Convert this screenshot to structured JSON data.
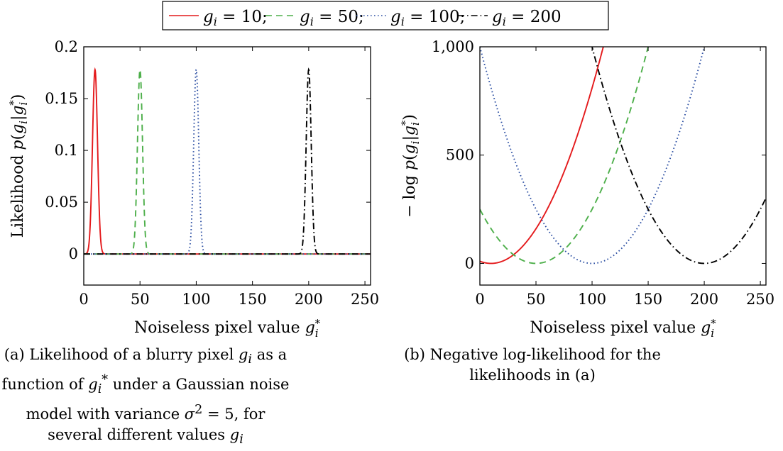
{
  "legend": {
    "entries": [
      {
        "label": "g",
        "sub": "i",
        "rest": " = 10;",
        "color": "#e41a1c",
        "dash": "solid"
      },
      {
        "label": "g",
        "sub": "i",
        "rest": " = 50;",
        "color": "#4daf4a",
        "dash": "dashed"
      },
      {
        "label": "g",
        "sub": "i",
        "rest": " = 100;",
        "color": "#2c4fa3",
        "dash": "dotted"
      },
      {
        "label": "g",
        "sub": "i",
        "rest": " = 200",
        "color": "#000000",
        "dash": "dashdot"
      }
    ]
  },
  "chart_data": [
    {
      "type": "line",
      "panel": "a",
      "ylabel": "Likelihood p(gᵢ|gᵢ*)",
      "xlabel": "Noiseless pixel value gᵢ*",
      "xlim": [
        0,
        255
      ],
      "ylim": [
        -0.03,
        0.2
      ],
      "xticks": [
        0,
        50,
        100,
        150,
        200,
        250
      ],
      "xtick_labels": [
        "0",
        "50",
        "100",
        "150",
        "200",
        "250"
      ],
      "yticks": [
        0,
        0.05,
        0.1,
        0.15,
        0.2
      ],
      "ytick_labels": [
        "0",
        "0.05",
        "0.1",
        "0.15",
        "0.2"
      ],
      "model": "gaussian",
      "variance": 5,
      "series": [
        {
          "name": "gᵢ = 10",
          "center": 10,
          "peak": 0.178
        },
        {
          "name": "gᵢ = 50",
          "center": 50,
          "peak": 0.178
        },
        {
          "name": "gᵢ = 100",
          "center": 100,
          "peak": 0.178
        },
        {
          "name": "gᵢ = 200",
          "center": 200,
          "peak": 0.178
        }
      ],
      "caption": "(a) Likelihood of a blurry pixel gᵢ as a function of gᵢ* under a Gaussian noise model with variance σ² = 5, for several different values gᵢ"
    },
    {
      "type": "line",
      "panel": "b",
      "ylabel": "− log p(gᵢ|gᵢ*)",
      "xlabel": "Noiseless pixel value gᵢ*",
      "xlim": [
        0,
        255
      ],
      "ylim": [
        -100,
        1000
      ],
      "xticks": [
        0,
        50,
        100,
        150,
        200,
        250
      ],
      "xtick_labels": [
        "0",
        "50",
        "100",
        "150",
        "200",
        "250"
      ],
      "yticks": [
        0,
        500,
        1000
      ],
      "ytick_labels": [
        "0",
        "500",
        "1,000"
      ],
      "model": "quadratic",
      "curvature": 0.1,
      "series": [
        {
          "name": "gᵢ = 10",
          "center": 10
        },
        {
          "name": "gᵢ = 50",
          "center": 50
        },
        {
          "name": "gᵢ = 100",
          "center": 100
        },
        {
          "name": "gᵢ = 200",
          "center": 200
        }
      ],
      "caption": "(b) Negative log-likelihood for the likelihoods in (a)"
    }
  ]
}
